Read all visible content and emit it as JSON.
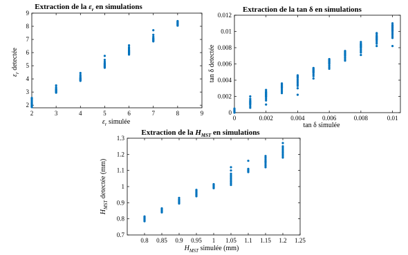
{
  "chart_data": [
    {
      "type": "scatter",
      "title": "Extraction de la εᵣ en simulations",
      "xlabel": "εᵣ simulée",
      "ylabel": "εᵣ detectée",
      "xlim": [
        2,
        9
      ],
      "ylim": [
        1.8,
        9
      ],
      "xticks": [
        "2",
        "3",
        "4",
        "5",
        "6",
        "7",
        "8",
        "9"
      ],
      "yticks": [
        "2",
        "3",
        "4",
        "5",
        "6",
        "7",
        "8",
        "9"
      ],
      "marker_color": "#0072BD",
      "groups": [
        {
          "x": 2,
          "y": [
            1.85,
            1.9,
            1.95,
            2.0,
            2.05,
            2.1,
            2.15,
            2.2,
            2.3,
            2.4,
            2.5,
            2.55
          ]
        },
        {
          "x": 3,
          "y": [
            2.95,
            3.0,
            3.05,
            3.1,
            3.15,
            3.2,
            3.25,
            3.35,
            3.5
          ]
        },
        {
          "x": 4,
          "y": [
            3.85,
            3.9,
            3.95,
            4.0,
            4.05,
            4.1,
            4.2,
            4.3,
            4.45
          ]
        },
        {
          "x": 5,
          "y": [
            4.85,
            4.9,
            4.95,
            5.0,
            5.05,
            5.1,
            5.15,
            5.2,
            5.3,
            5.45,
            5.75
          ]
        },
        {
          "x": 6,
          "y": [
            5.85,
            5.9,
            5.95,
            6.0,
            6.05,
            6.1,
            6.15,
            6.2,
            6.3,
            6.4,
            6.55
          ]
        },
        {
          "x": 7,
          "y": [
            6.85,
            6.9,
            6.95,
            7.0,
            7.05,
            7.1,
            7.2,
            7.35,
            7.7
          ]
        },
        {
          "x": 8,
          "y": [
            8.05,
            8.1,
            8.15,
            8.2,
            8.25,
            8.3,
            8.35,
            8.4
          ]
        }
      ]
    },
    {
      "type": "scatter",
      "title": "Extraction de la tan δ en simulations",
      "xlabel": "tan δ simulée",
      "ylabel": "tan δ detectée",
      "xlim": [
        0,
        0.0105
      ],
      "ylim": [
        0,
        0.012
      ],
      "xticks": [
        "0",
        "0.002",
        "0.004",
        "0.006",
        "0.008",
        "0.01"
      ],
      "yticks": [
        "0",
        "0.002",
        "0.004",
        "0.006",
        "0.008",
        "0.01",
        "0.012"
      ],
      "marker_color": "#0072BD",
      "groups": [
        {
          "x": 0,
          "y": [
            0.0,
            0.0001,
            0.0002,
            0.0003,
            0.0004,
            0.0005
          ]
        },
        {
          "x": 0.001,
          "y": [
            0.0006,
            0.0008,
            0.001,
            0.0011,
            0.0012,
            0.0013,
            0.0014,
            0.0015,
            0.0017,
            0.002
          ]
        },
        {
          "x": 0.002,
          "y": [
            0.001,
            0.0015,
            0.0017,
            0.0019,
            0.002,
            0.0021,
            0.0022,
            0.0023,
            0.0024,
            0.0025,
            0.0026,
            0.0028
          ]
        },
        {
          "x": 0.003,
          "y": [
            0.0024,
            0.0026,
            0.0028,
            0.003,
            0.0031,
            0.0032,
            0.0033,
            0.0034,
            0.0035,
            0.0036
          ]
        },
        {
          "x": 0.004,
          "y": [
            0.0022,
            0.003,
            0.0033,
            0.0035,
            0.0037,
            0.0039,
            0.0041,
            0.0043,
            0.0044,
            0.0045,
            0.0046
          ]
        },
        {
          "x": 0.005,
          "y": [
            0.0042,
            0.0045,
            0.0047,
            0.0049,
            0.005,
            0.0051,
            0.0052,
            0.0053,
            0.0054,
            0.0055
          ]
        },
        {
          "x": 0.006,
          "y": [
            0.0054,
            0.0056,
            0.0058,
            0.006,
            0.0061,
            0.0062,
            0.0063,
            0.0064,
            0.0065,
            0.0066
          ]
        },
        {
          "x": 0.007,
          "y": [
            0.0064,
            0.0066,
            0.0068,
            0.007,
            0.0071,
            0.0072,
            0.0073,
            0.0074,
            0.0075,
            0.0076
          ]
        },
        {
          "x": 0.008,
          "y": [
            0.0071,
            0.0074,
            0.0076,
            0.0078,
            0.008,
            0.0081,
            0.0082,
            0.0083,
            0.0084,
            0.0085,
            0.0087
          ]
        },
        {
          "x": 0.009,
          "y": [
            0.0082,
            0.0085,
            0.0087,
            0.0089,
            0.009,
            0.0091,
            0.0092,
            0.0093,
            0.0094,
            0.0095,
            0.0097,
            0.0098
          ]
        },
        {
          "x": 0.01,
          "y": [
            0.0082,
            0.0092,
            0.0094,
            0.0096,
            0.0098,
            0.01,
            0.0101,
            0.0102,
            0.0103,
            0.0104,
            0.0105,
            0.0106,
            0.0107,
            0.0108,
            0.011
          ]
        }
      ]
    },
    {
      "type": "scatter",
      "title": "Extraction de la Hₘₛₜ en simulations",
      "xlabel": "Hₘₛₜ simulée (mm)",
      "ylabel": "Hₘₛₜ detectée (mm)",
      "xlim": [
        0.75,
        1.25
      ],
      "ylim": [
        0.7,
        1.3
      ],
      "xticks": [
        "0.8",
        "0.85",
        "0.9",
        "0.95",
        "1",
        "1.05",
        "1.1",
        "1.15",
        "1.2",
        "1.25"
      ],
      "yticks": [
        "0.7",
        "0.8",
        "0.9",
        "1",
        "1.1",
        "1.2",
        "1.3"
      ],
      "marker_color": "#0072BD",
      "groups": [
        {
          "x": 0.8,
          "y": [
            0.785,
            0.79,
            0.795,
            0.8,
            0.805,
            0.81,
            0.815
          ]
        },
        {
          "x": 0.85,
          "y": [
            0.84,
            0.845,
            0.85,
            0.855,
            0.86,
            0.865
          ]
        },
        {
          "x": 0.9,
          "y": [
            0.895,
            0.9,
            0.905,
            0.91,
            0.915,
            0.92,
            0.93
          ]
        },
        {
          "x": 0.95,
          "y": [
            0.94,
            0.945,
            0.95,
            0.955,
            0.96,
            0.965,
            0.97,
            0.975,
            0.98
          ]
        },
        {
          "x": 1.0,
          "y": [
            0.99,
            0.995,
            1.0,
            1.005,
            1.01,
            1.015
          ]
        },
        {
          "x": 1.05,
          "y": [
            1.01,
            1.02,
            1.03,
            1.04,
            1.05,
            1.06,
            1.07,
            1.08,
            1.1,
            1.12
          ]
        },
        {
          "x": 1.1,
          "y": [
            1.09,
            1.095,
            1.1,
            1.105,
            1.11,
            1.16
          ]
        },
        {
          "x": 1.15,
          "y": [
            1.12,
            1.13,
            1.14,
            1.15,
            1.155,
            1.16,
            1.17,
            1.18,
            1.19
          ]
        },
        {
          "x": 1.2,
          "y": [
            1.18,
            1.19,
            1.2,
            1.21,
            1.22,
            1.23,
            1.24,
            1.25,
            1.27
          ]
        }
      ]
    }
  ]
}
